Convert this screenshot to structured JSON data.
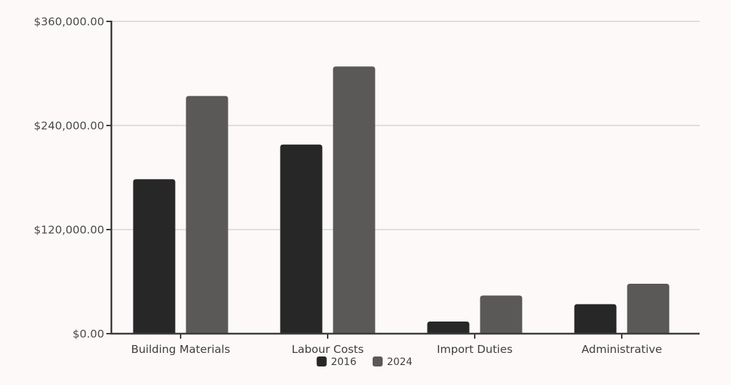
{
  "chart_data": {
    "type": "bar",
    "title": "",
    "xlabel": "",
    "ylabel": "",
    "categories": [
      "Building Materials",
      "Labour Costs",
      "Import Duties",
      "Administrative"
    ],
    "series": [
      {
        "name": "2016",
        "color": "#272727",
        "values": [
          178000,
          218000,
          14000,
          34000
        ]
      },
      {
        "name": "2024",
        "color": "#5a5957",
        "values": [
          274000,
          308000,
          44000,
          57500
        ]
      }
    ],
    "ylim": [
      0,
      360000
    ],
    "yticks": [
      0,
      120000,
      240000,
      360000
    ],
    "ytick_labels": [
      "$0.00",
      "$120,000.00",
      "$240,000.00",
      "$360,000.00"
    ],
    "grid": true,
    "legend_position": "bottom-center"
  }
}
